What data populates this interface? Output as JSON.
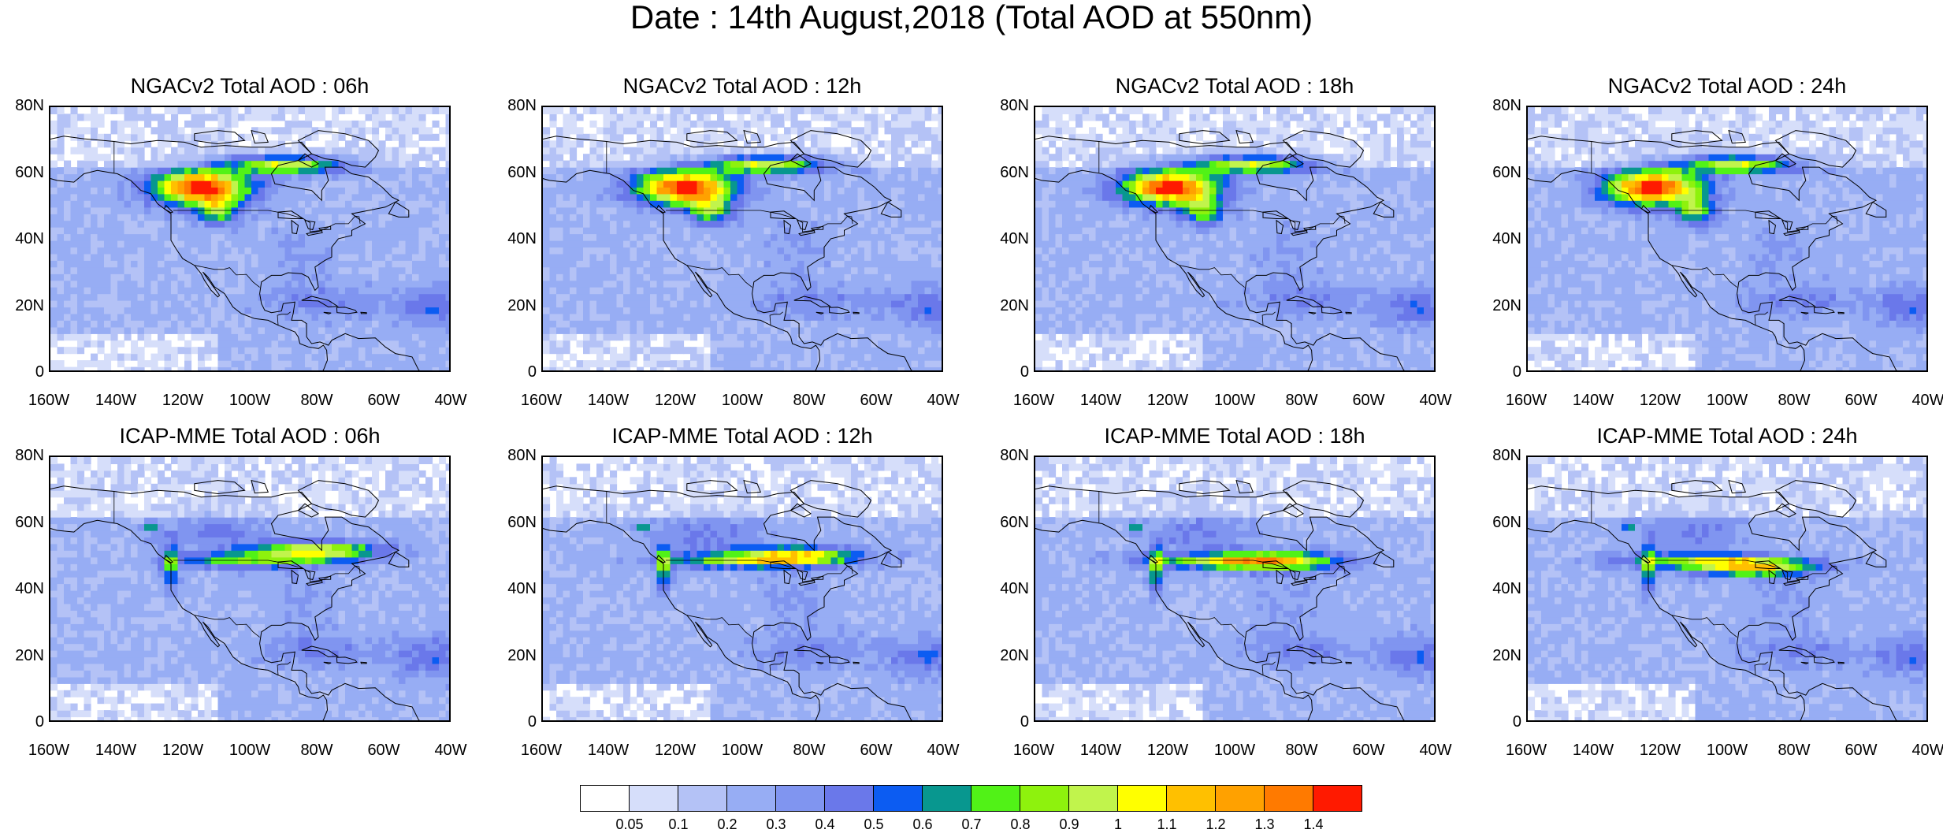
{
  "main_title": "Date : 14th August,2018 (Total AOD at 550nm)",
  "lat_ticks": [
    "80N",
    "60N",
    "40N",
    "20N",
    "0"
  ],
  "lon_ticks": [
    "160W",
    "140W",
    "120W",
    "100W",
    "80W",
    "60W",
    "40W"
  ],
  "map_extent": {
    "lon_min": -160,
    "lon_max": -40,
    "lat_min": 0,
    "lat_max": 80
  },
  "panels": [
    {
      "title": "NGACv2 Total AOD : 06h",
      "model": "NGACv2",
      "lead": "06h"
    },
    {
      "title": "NGACv2 Total AOD : 12h",
      "model": "NGACv2",
      "lead": "12h"
    },
    {
      "title": "NGACv2 Total AOD : 18h",
      "model": "NGACv2",
      "lead": "18h"
    },
    {
      "title": "NGACv2 Total AOD : 24h",
      "model": "NGACv2",
      "lead": "24h"
    },
    {
      "title": "ICAP-MME Total AOD : 06h",
      "model": "ICAP-MME",
      "lead": "06h"
    },
    {
      "title": "ICAP-MME Total AOD : 12h",
      "model": "ICAP-MME",
      "lead": "12h"
    },
    {
      "title": "ICAP-MME Total AOD : 18h",
      "model": "ICAP-MME",
      "lead": "18h"
    },
    {
      "title": "ICAP-MME Total AOD : 24h",
      "model": "ICAP-MME",
      "lead": "24h"
    }
  ],
  "colorbar": {
    "labels": [
      "0.05",
      "0.1",
      "0.2",
      "0.3",
      "0.4",
      "0.5",
      "0.6",
      "0.7",
      "0.8",
      "0.9",
      "1",
      "1.1",
      "1.2",
      "1.3",
      "1.4"
    ],
    "colors": [
      "#ffffff",
      "#d6defa",
      "#b4c2f6",
      "#97adf4",
      "#8095f0",
      "#6a78ea",
      "#0c5cf2",
      "#08978f",
      "#51f217",
      "#8ef20d",
      "#c1f44c",
      "#ffff00",
      "#ffc000",
      "#ffa100",
      "#ff7a00",
      "#ff1a00"
    ]
  }
}
